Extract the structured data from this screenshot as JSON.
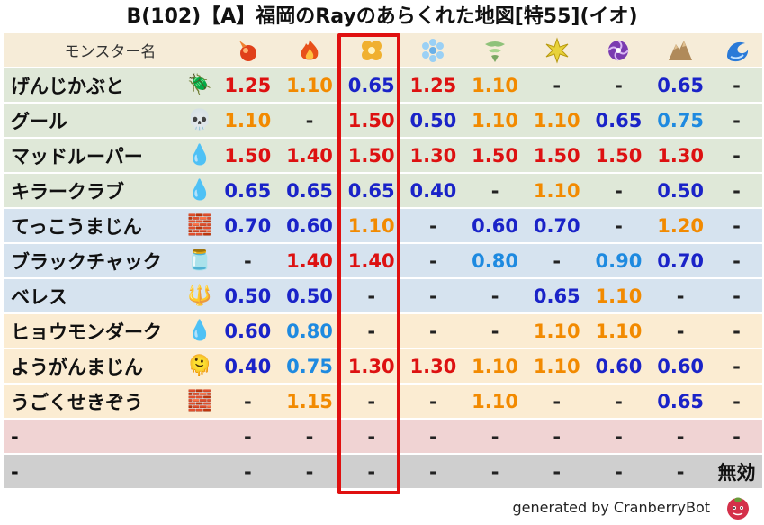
{
  "title": "B(102)【A】福岡のRayのあらくれた地図[特55](イオ)",
  "header": {
    "name_label": "モンスター名",
    "elements": [
      {
        "icon": "mera-fire-icon",
        "color": "#e0401a"
      },
      {
        "icon": "gira-flame-icon",
        "color": "#f07020"
      },
      {
        "icon": "io-explosion-icon",
        "color": "#f0b030"
      },
      {
        "icon": "hyado-ice-icon",
        "color": "#6ab0e8"
      },
      {
        "icon": "bagi-wind-icon",
        "color": "#8fc27a"
      },
      {
        "icon": "dein-lightning-icon",
        "color": "#e8d23a"
      },
      {
        "icon": "dorma-dark-icon",
        "color": "#7a3bb0"
      },
      {
        "icon": "jibaria-earth-icon",
        "color": "#b08a5a"
      },
      {
        "icon": "water-wave-icon",
        "color": "#2a7ad8"
      }
    ]
  },
  "rows": [
    {
      "name": "げんじかぶと",
      "icon": "beetle-icon",
      "icon_glyph": "🪲",
      "bg": "#dfe8d8",
      "values": [
        "1.25",
        "1.10",
        "0.65",
        "1.25",
        "1.10",
        "-",
        "-",
        "0.65",
        "-"
      ],
      "colors": [
        "red",
        "orange",
        "navy",
        "red",
        "orange",
        "dash",
        "dash",
        "navy",
        "dash"
      ]
    },
    {
      "name": "グール",
      "icon": "skull-icon",
      "icon_glyph": "💀",
      "bg": "#dfe8d8",
      "values": [
        "1.10",
        "-",
        "1.50",
        "0.50",
        "1.10",
        "1.10",
        "0.65",
        "0.75",
        "-"
      ],
      "colors": [
        "orange",
        "dash",
        "red",
        "navy",
        "orange",
        "orange",
        "navy",
        "sky",
        "dash"
      ]
    },
    {
      "name": "マッドルーパー",
      "icon": "water-drop-icon",
      "icon_glyph": "💧",
      "bg": "#dfe8d8",
      "values": [
        "1.50",
        "1.40",
        "1.50",
        "1.30",
        "1.50",
        "1.50",
        "1.50",
        "1.30",
        "-"
      ],
      "colors": [
        "red",
        "red",
        "red",
        "red",
        "red",
        "red",
        "red",
        "red",
        "dash"
      ]
    },
    {
      "name": "キラークラブ",
      "icon": "water-drop-icon",
      "icon_glyph": "💧",
      "bg": "#dfe8d8",
      "values": [
        "0.65",
        "0.65",
        "0.65",
        "0.40",
        "-",
        "1.10",
        "-",
        "0.50",
        "-"
      ],
      "colors": [
        "navy",
        "navy",
        "navy",
        "navy",
        "dash",
        "orange",
        "dash",
        "navy",
        "dash"
      ]
    },
    {
      "name": "てっこうまじん",
      "icon": "brick-wall-icon",
      "icon_glyph": "🧱",
      "bg": "#d6e3ef",
      "values": [
        "0.70",
        "0.60",
        "1.10",
        "-",
        "0.60",
        "0.70",
        "-",
        "1.20",
        "-"
      ],
      "colors": [
        "navy",
        "navy",
        "orange",
        "dash",
        "navy",
        "navy",
        "dash",
        "orange",
        "dash"
      ]
    },
    {
      "name": "ブラックチャック",
      "icon": "slime-pot-icon",
      "icon_glyph": "🫙",
      "bg": "#d6e3ef",
      "values": [
        "-",
        "1.40",
        "1.40",
        "-",
        "0.80",
        "-",
        "0.90",
        "0.70",
        "-"
      ],
      "colors": [
        "dash",
        "red",
        "red",
        "dash",
        "sky",
        "dash",
        "sky",
        "navy",
        "dash"
      ]
    },
    {
      "name": "ベレス",
      "icon": "demon-trident-icon",
      "icon_glyph": "🔱",
      "bg": "#d6e3ef",
      "values": [
        "0.50",
        "0.50",
        "-",
        "-",
        "-",
        "0.65",
        "1.10",
        "-",
        "-"
      ],
      "colors": [
        "navy",
        "navy",
        "dash",
        "dash",
        "dash",
        "navy",
        "orange",
        "dash",
        "dash"
      ]
    },
    {
      "name": "ヒョウモンダーク",
      "icon": "water-drop-icon",
      "icon_glyph": "💧",
      "bg": "#fbecd2",
      "values": [
        "0.60",
        "0.80",
        "-",
        "-",
        "-",
        "1.10",
        "1.10",
        "-",
        "-"
      ],
      "colors": [
        "navy",
        "sky",
        "dash",
        "dash",
        "dash",
        "orange",
        "orange",
        "dash",
        "dash"
      ]
    },
    {
      "name": "ようがんまじん",
      "icon": "lava-blob-icon",
      "icon_glyph": "🫠",
      "bg": "#fbecd2",
      "values": [
        "0.40",
        "0.75",
        "1.30",
        "1.30",
        "1.10",
        "1.10",
        "0.60",
        "0.60",
        "-"
      ],
      "colors": [
        "navy",
        "sky",
        "red",
        "red",
        "orange",
        "orange",
        "navy",
        "navy",
        "dash"
      ]
    },
    {
      "name": "うごくせきぞう",
      "icon": "brick-wall-icon",
      "icon_glyph": "🧱",
      "bg": "#fbecd2",
      "values": [
        "-",
        "1.15",
        "-",
        "-",
        "1.10",
        "-",
        "-",
        "0.65",
        "-"
      ],
      "colors": [
        "dash",
        "orange",
        "dash",
        "dash",
        "orange",
        "dash",
        "dash",
        "navy",
        "dash"
      ]
    },
    {
      "name": "-",
      "icon": "",
      "icon_glyph": "",
      "bg": "#f0d3d3",
      "values": [
        "-",
        "-",
        "-",
        "-",
        "-",
        "-",
        "-",
        "-",
        "-"
      ],
      "colors": [
        "dash",
        "dash",
        "dash",
        "dash",
        "dash",
        "dash",
        "dash",
        "dash",
        "dash"
      ]
    },
    {
      "name": "-",
      "icon": "",
      "icon_glyph": "",
      "bg": "#cfcfcf",
      "values": [
        "-",
        "-",
        "-",
        "-",
        "-",
        "-",
        "-",
        "-",
        "無効"
      ],
      "colors": [
        "dash",
        "dash",
        "dash",
        "dash",
        "dash",
        "dash",
        "dash",
        "dash",
        "black"
      ]
    }
  ],
  "footer": {
    "text": "generated by CranberryBot",
    "icon": "cranberry-bot-icon"
  }
}
